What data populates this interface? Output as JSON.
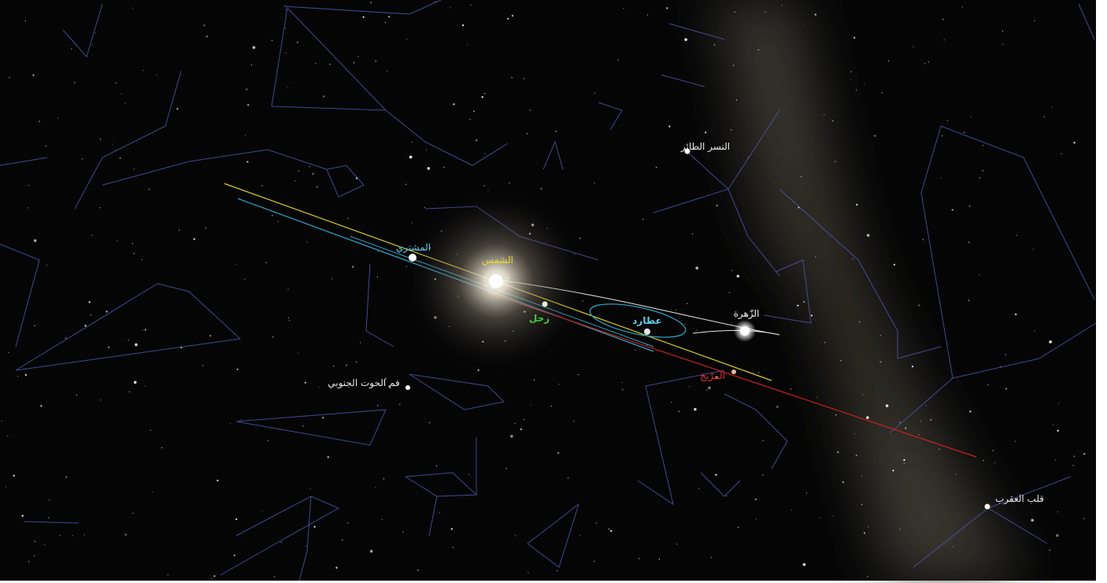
{
  "sky": {
    "labels": {
      "altair": "النسر الطائر",
      "jupiter": "المشتري",
      "sun": "الشمس",
      "saturn": "زحل",
      "mercury": "عطارد",
      "venus": "الزّهرة",
      "mars": "المرّيخ",
      "fomalhaut": "فم الحوت الجنوبي",
      "antares": "قلب العقرب"
    }
  }
}
